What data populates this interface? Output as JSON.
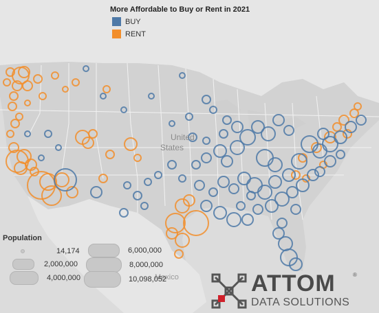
{
  "legend": {
    "title": "More Affordable to Buy or Rent in 2021",
    "items": [
      {
        "label": "BUY",
        "color": "#4e79a7"
      },
      {
        "label": "RENT",
        "color": "#f28e2b"
      }
    ]
  },
  "map_labels": {
    "country_line1": "United",
    "country_line2": "States",
    "partial_label": "Mexico"
  },
  "population": {
    "title": "Population",
    "items": [
      {
        "label": "14,174"
      },
      {
        "label": "2,000,000"
      },
      {
        "label": "4,000,000"
      },
      {
        "label": "6,000,000"
      },
      {
        "label": "8,000,000"
      },
      {
        "label": "10,098,052"
      }
    ]
  },
  "logo": {
    "word": "ATTOM",
    "sub": "DATA SOLUTIONS",
    "reg": "®"
  }
}
